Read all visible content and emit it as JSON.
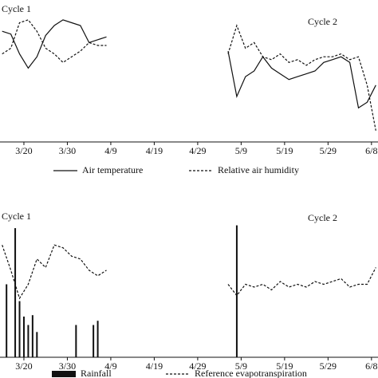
{
  "chart_data": [
    {
      "type": "line",
      "annotations": [
        "Cycle 1",
        "Cycle 2"
      ],
      "x": [
        -5,
        -3,
        -1,
        1,
        3,
        5,
        7,
        9,
        11,
        13,
        15,
        17,
        19,
        33,
        47,
        49,
        51,
        53,
        55,
        57,
        59,
        61,
        63,
        65,
        67,
        69,
        71,
        73,
        75,
        77,
        79,
        81
      ],
      "xlim": [
        -5.5,
        81.5
      ],
      "xticks": [
        {
          "value": 0,
          "label": "3/20"
        },
        {
          "value": 10,
          "label": "3/30"
        },
        {
          "value": 20,
          "label": "4/9"
        },
        {
          "value": 30,
          "label": "4/19"
        },
        {
          "value": 40,
          "label": "4/29"
        },
        {
          "value": 50,
          "label": "5/9"
        },
        {
          "value": 60,
          "label": "5/19"
        },
        {
          "value": 70,
          "label": "5/29"
        },
        {
          "value": 80,
          "label": "6/8"
        }
      ],
      "ylim": [
        0,
        100
      ],
      "series": [
        {
          "name": "Air temperature",
          "color": "#111111",
          "dashed": false,
          "values": [
            78,
            76,
            62,
            52,
            60,
            75,
            82,
            86,
            84,
            82,
            70,
            72,
            74,
            null,
            64,
            32,
            46,
            50,
            60,
            52,
            48,
            44,
            46,
            48,
            50,
            56,
            58,
            60,
            56,
            24,
            28,
            40
          ]
        },
        {
          "name": "Relative air humidity",
          "color": "#111111",
          "dashed": true,
          "values": [
            62,
            66,
            84,
            86,
            78,
            66,
            62,
            56,
            60,
            64,
            70,
            68,
            68,
            null,
            62,
            82,
            66,
            70,
            60,
            58,
            62,
            56,
            58,
            54,
            58,
            60,
            60,
            62,
            58,
            60,
            40,
            8
          ]
        }
      ]
    },
    {
      "type": "line",
      "annotations": [
        "Cycle 1",
        "Cycle 2"
      ],
      "x": [
        -5,
        -3,
        -1,
        1,
        3,
        5,
        7,
        9,
        11,
        13,
        15,
        17,
        19,
        33,
        47,
        49,
        51,
        53,
        55,
        57,
        59,
        61,
        63,
        65,
        67,
        69,
        71,
        73,
        75,
        77,
        79,
        81
      ],
      "xlim": [
        -5.5,
        81.5
      ],
      "xticks": [
        {
          "value": 0,
          "label": "3/20"
        },
        {
          "value": 10,
          "label": "3/30"
        },
        {
          "value": 20,
          "label": "4/9"
        },
        {
          "value": 30,
          "label": "4/19"
        },
        {
          "value": 40,
          "label": "4/29"
        },
        {
          "value": 50,
          "label": "5/9"
        },
        {
          "value": 60,
          "label": "5/19"
        },
        {
          "value": 70,
          "label": "5/29"
        },
        {
          "value": 80,
          "label": "6/8"
        }
      ],
      "ylim": [
        0,
        100
      ],
      "series": [
        {
          "name": "Rainfall",
          "color": "#111111",
          "style": "bar",
          "x": [
            -4,
            -2,
            -1,
            0,
            1,
            2,
            3,
            12,
            16,
            17,
            49
          ],
          "values": [
            52,
            92,
            40,
            29,
            23,
            30,
            18,
            23,
            23,
            26,
            94
          ]
        },
        {
          "name": "Reference evapotranspiration",
          "color": "#111111",
          "dashed": true,
          "values": [
            80,
            62,
            42,
            52,
            70,
            64,
            80,
            78,
            72,
            70,
            62,
            58,
            62,
            null,
            52,
            44,
            52,
            50,
            52,
            48,
            54,
            50,
            52,
            50,
            54,
            52,
            54,
            56,
            50,
            52,
            52,
            64
          ]
        }
      ]
    }
  ]
}
